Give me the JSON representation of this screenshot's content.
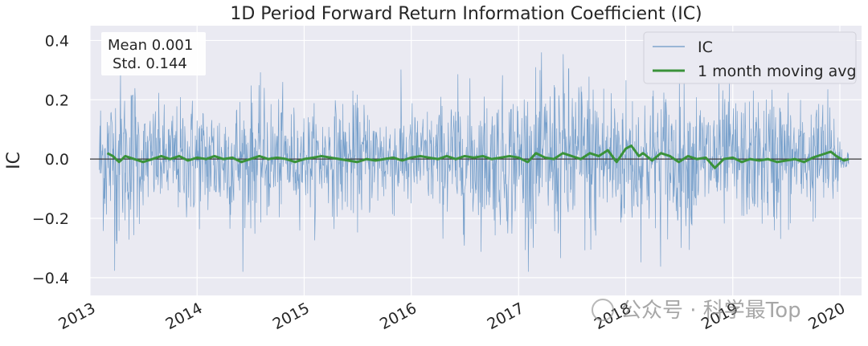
{
  "chart_data": {
    "type": "line",
    "title": "1D Period Forward Return Information Coefficient (IC)",
    "xlabel": "",
    "ylabel": "IC",
    "xlim": [
      "2013-01-01",
      "2020-03-15"
    ],
    "ylim": [
      -0.46,
      0.45
    ],
    "yticks": [
      -0.4,
      -0.2,
      0.0,
      0.2,
      0.4
    ],
    "ytick_labels": [
      "−0.4",
      "−0.2",
      "0.0",
      "0.2",
      "0.4"
    ],
    "xticks": [
      "2013-01-01",
      "2014-01-01",
      "2015-01-01",
      "2016-01-01",
      "2017-01-01",
      "2018-01-01",
      "2019-01-01",
      "2020-01-01"
    ],
    "xtick_labels": [
      "2013",
      "2014",
      "2015",
      "2016",
      "2017",
      "2018",
      "2019",
      "2020"
    ],
    "grid": true,
    "zero_line": true,
    "legend_position": "top-right",
    "stats_box": {
      "mean_line": "Mean 0.001",
      "std_line": "Std. 0.144",
      "mean": 0.001,
      "std": 0.144
    },
    "series": [
      {
        "name": "IC",
        "color": "#6a98c6",
        "note": "daily IC values, dense noisy series between about -0.38 and 0.36",
        "start": "2013-02-01",
        "end": "2020-01-31",
        "sampled_points": [
          [
            "2013-02-15",
            0.28
          ],
          [
            "2013-03-01",
            -0.33
          ],
          [
            "2013-03-15",
            0.29
          ],
          [
            "2013-04-01",
            -0.37
          ],
          [
            "2013-05-01",
            0.3
          ],
          [
            "2013-06-01",
            -0.36
          ],
          [
            "2013-07-01",
            0.18
          ],
          [
            "2013-08-01",
            -0.22
          ],
          [
            "2013-10-01",
            0.2
          ],
          [
            "2013-12-01",
            -0.25
          ],
          [
            "2014-03-01",
            0.24
          ],
          [
            "2014-06-01",
            -0.27
          ],
          [
            "2014-09-01",
            0.25
          ],
          [
            "2014-12-01",
            -0.2
          ],
          [
            "2015-03-01",
            0.19
          ],
          [
            "2015-06-01",
            -0.24
          ],
          [
            "2015-09-01",
            0.21
          ],
          [
            "2015-12-01",
            -0.22
          ],
          [
            "2016-03-01",
            0.2
          ],
          [
            "2016-06-01",
            -0.28
          ],
          [
            "2016-09-01",
            0.26
          ],
          [
            "2016-12-01",
            -0.29
          ],
          [
            "2017-03-01",
            0.31
          ],
          [
            "2017-06-01",
            -0.36
          ],
          [
            "2017-09-01",
            0.35
          ],
          [
            "2017-12-01",
            -0.3
          ],
          [
            "2018-03-01",
            0.29
          ],
          [
            "2018-06-01",
            -0.3
          ],
          [
            "2018-09-01",
            0.27
          ],
          [
            "2018-12-01",
            -0.27
          ],
          [
            "2019-03-01",
            0.24
          ],
          [
            "2019-06-01",
            -0.3
          ],
          [
            "2019-09-01",
            0.21
          ],
          [
            "2019-12-01",
            -0.25
          ],
          [
            "2020-01-15",
            0.08
          ],
          [
            "2020-01-31",
            -0.03
          ]
        ]
      },
      {
        "name": "1 month moving avg",
        "color": "#3a923a",
        "start": "2013-03-01",
        "end": "2020-01-31",
        "points": [
          [
            "2013-03-01",
            0.02
          ],
          [
            "2013-03-20",
            0.01
          ],
          [
            "2013-04-10",
            -0.01
          ],
          [
            "2013-05-01",
            0.01
          ],
          [
            "2013-06-01",
            0.0
          ],
          [
            "2013-07-01",
            -0.01
          ],
          [
            "2013-08-01",
            0.0
          ],
          [
            "2013-09-01",
            0.01
          ],
          [
            "2013-10-01",
            0.0
          ],
          [
            "2013-11-01",
            0.01
          ],
          [
            "2013-12-01",
            -0.005
          ],
          [
            "2014-01-01",
            0.005
          ],
          [
            "2014-02-01",
            0.0
          ],
          [
            "2014-03-01",
            0.01
          ],
          [
            "2014-04-01",
            0.0
          ],
          [
            "2014-05-01",
            0.005
          ],
          [
            "2014-06-01",
            -0.01
          ],
          [
            "2014-07-01",
            0.0
          ],
          [
            "2014-08-01",
            0.01
          ],
          [
            "2014-09-01",
            0.0
          ],
          [
            "2014-10-01",
            0.005
          ],
          [
            "2014-11-01",
            0.0
          ],
          [
            "2014-12-01",
            -0.01
          ],
          [
            "2015-01-01",
            0.0
          ],
          [
            "2015-02-01",
            0.005
          ],
          [
            "2015-03-01",
            0.01
          ],
          [
            "2015-04-01",
            0.005
          ],
          [
            "2015-05-01",
            0.0
          ],
          [
            "2015-06-01",
            -0.005
          ],
          [
            "2015-07-01",
            -0.01
          ],
          [
            "2015-08-01",
            0.0
          ],
          [
            "2015-09-01",
            -0.005
          ],
          [
            "2015-10-01",
            0.0
          ],
          [
            "2015-11-01",
            0.005
          ],
          [
            "2015-12-01",
            -0.005
          ],
          [
            "2016-01-01",
            0.005
          ],
          [
            "2016-02-01",
            0.01
          ],
          [
            "2016-03-01",
            0.005
          ],
          [
            "2016-04-01",
            0.0
          ],
          [
            "2016-05-01",
            0.01
          ],
          [
            "2016-06-01",
            0.0
          ],
          [
            "2016-07-01",
            0.01
          ],
          [
            "2016-08-01",
            0.005
          ],
          [
            "2016-09-01",
            0.01
          ],
          [
            "2016-10-01",
            0.0
          ],
          [
            "2016-11-01",
            0.005
          ],
          [
            "2016-12-01",
            0.01
          ],
          [
            "2017-01-01",
            0.005
          ],
          [
            "2017-02-01",
            -0.01
          ],
          [
            "2017-03-01",
            0.02
          ],
          [
            "2017-04-01",
            0.005
          ],
          [
            "2017-05-01",
            0.0
          ],
          [
            "2017-06-01",
            0.02
          ],
          [
            "2017-07-01",
            0.01
          ],
          [
            "2017-08-01",
            0.0
          ],
          [
            "2017-09-01",
            0.02
          ],
          [
            "2017-10-01",
            0.01
          ],
          [
            "2017-11-01",
            0.03
          ],
          [
            "2017-12-01",
            -0.01
          ],
          [
            "2018-01-01",
            0.035
          ],
          [
            "2018-01-20",
            0.045
          ],
          [
            "2018-02-15",
            0.01
          ],
          [
            "2018-03-01",
            0.02
          ],
          [
            "2018-04-01",
            -0.005
          ],
          [
            "2018-05-01",
            0.02
          ],
          [
            "2018-06-01",
            0.01
          ],
          [
            "2018-07-01",
            -0.01
          ],
          [
            "2018-08-01",
            0.01
          ],
          [
            "2018-09-01",
            0.0
          ],
          [
            "2018-10-01",
            0.005
          ],
          [
            "2018-11-01",
            -0.03
          ],
          [
            "2018-12-01",
            0.0
          ],
          [
            "2019-01-01",
            0.005
          ],
          [
            "2019-02-01",
            -0.01
          ],
          [
            "2019-03-01",
            0.0
          ],
          [
            "2019-04-01",
            -0.005
          ],
          [
            "2019-05-01",
            0.0
          ],
          [
            "2019-06-01",
            -0.01
          ],
          [
            "2019-07-01",
            -0.005
          ],
          [
            "2019-08-01",
            0.0
          ],
          [
            "2019-09-01",
            -0.01
          ],
          [
            "2019-10-01",
            0.005
          ],
          [
            "2019-11-01",
            0.015
          ],
          [
            "2019-12-01",
            0.025
          ],
          [
            "2019-12-20",
            0.01
          ],
          [
            "2020-01-15",
            -0.005
          ],
          [
            "2020-01-31",
            0.0
          ]
        ]
      }
    ]
  },
  "watermark": "公众号 · 科学最Top"
}
